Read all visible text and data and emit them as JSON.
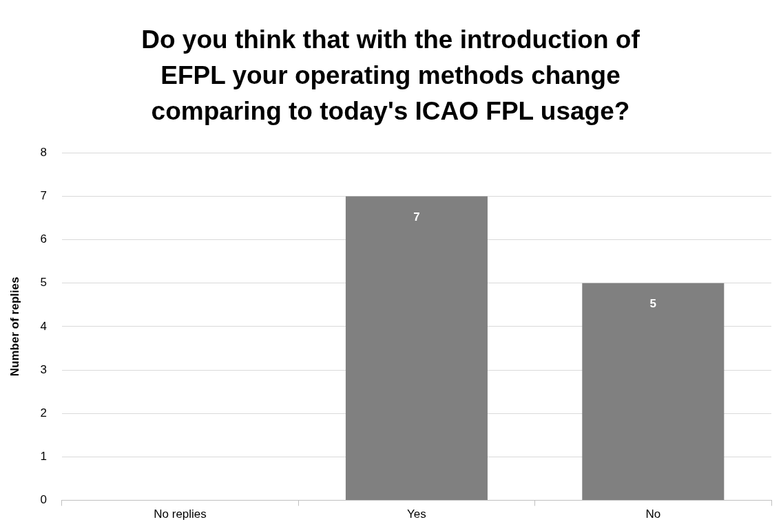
{
  "chart_data": {
    "type": "bar",
    "title": "Do you think that with the introduction of EFPL your operating methods change comparing to today's ICAO FPL usage?",
    "ylabel": "Number of replies",
    "categories": [
      "No replies",
      "Yes",
      "No"
    ],
    "values": [
      0,
      7,
      5
    ],
    "color": "#808080",
    "value_labels": [
      null,
      "7",
      "5"
    ],
    "ylim": [
      0,
      8
    ],
    "yticks": [
      0,
      1,
      2,
      3,
      4,
      5,
      6,
      7,
      8
    ],
    "grid": "y"
  }
}
